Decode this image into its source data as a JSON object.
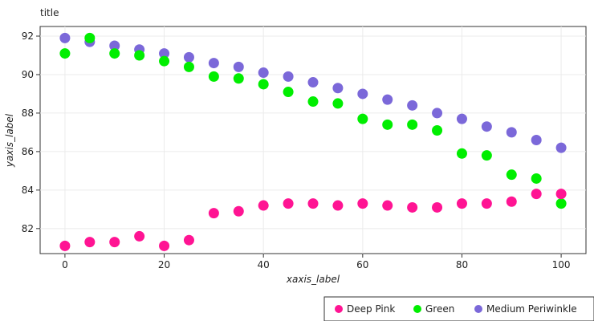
{
  "chart_data": {
    "type": "scatter",
    "title": "title",
    "xlabel": "xaxis_label",
    "ylabel": "yaxis_label",
    "xlim": [
      -5,
      105
    ],
    "ylim": [
      80.7,
      92.5
    ],
    "xticks": [
      0,
      20,
      40,
      60,
      80,
      100
    ],
    "yticks": [
      82,
      84,
      86,
      88,
      90,
      92
    ],
    "grid": true,
    "legend_position": "bottom-right",
    "series": [
      {
        "name": "Medium Periwinkle",
        "color": "#7b68d9",
        "x": [
          0,
          5,
          10,
          15,
          20,
          25,
          30,
          35,
          40,
          45,
          50,
          55,
          60,
          65,
          70,
          75,
          80,
          85,
          90,
          95,
          100
        ],
        "y": [
          91.9,
          91.7,
          91.5,
          91.3,
          91.1,
          90.9,
          90.6,
          90.4,
          90.1,
          89.9,
          89.6,
          89.3,
          89.0,
          88.7,
          88.4,
          88.0,
          87.7,
          87.3,
          87.0,
          86.6,
          86.2
        ]
      },
      {
        "name": "Green",
        "color": "#00ee00",
        "x": [
          0,
          5,
          10,
          15,
          20,
          25,
          30,
          35,
          40,
          45,
          50,
          55,
          60,
          65,
          70,
          75,
          80,
          85,
          90,
          95,
          100
        ],
        "y": [
          91.1,
          91.9,
          91.1,
          91.0,
          90.7,
          90.4,
          89.9,
          89.8,
          89.5,
          89.1,
          88.6,
          88.5,
          87.7,
          87.4,
          87.4,
          87.1,
          85.9,
          85.8,
          84.8,
          84.6,
          83.3
        ]
      },
      {
        "name": "Deep Pink",
        "color": "#ff1493",
        "x": [
          0,
          5,
          10,
          15,
          20,
          25,
          30,
          35,
          40,
          45,
          50,
          55,
          60,
          65,
          70,
          75,
          80,
          85,
          90,
          95,
          100
        ],
        "y": [
          81.1,
          81.3,
          81.3,
          81.6,
          81.1,
          81.4,
          82.8,
          82.9,
          83.2,
          83.3,
          83.3,
          83.2,
          83.3,
          83.2,
          83.1,
          83.1,
          83.3,
          83.3,
          83.4,
          83.8,
          83.8
        ]
      }
    ]
  }
}
